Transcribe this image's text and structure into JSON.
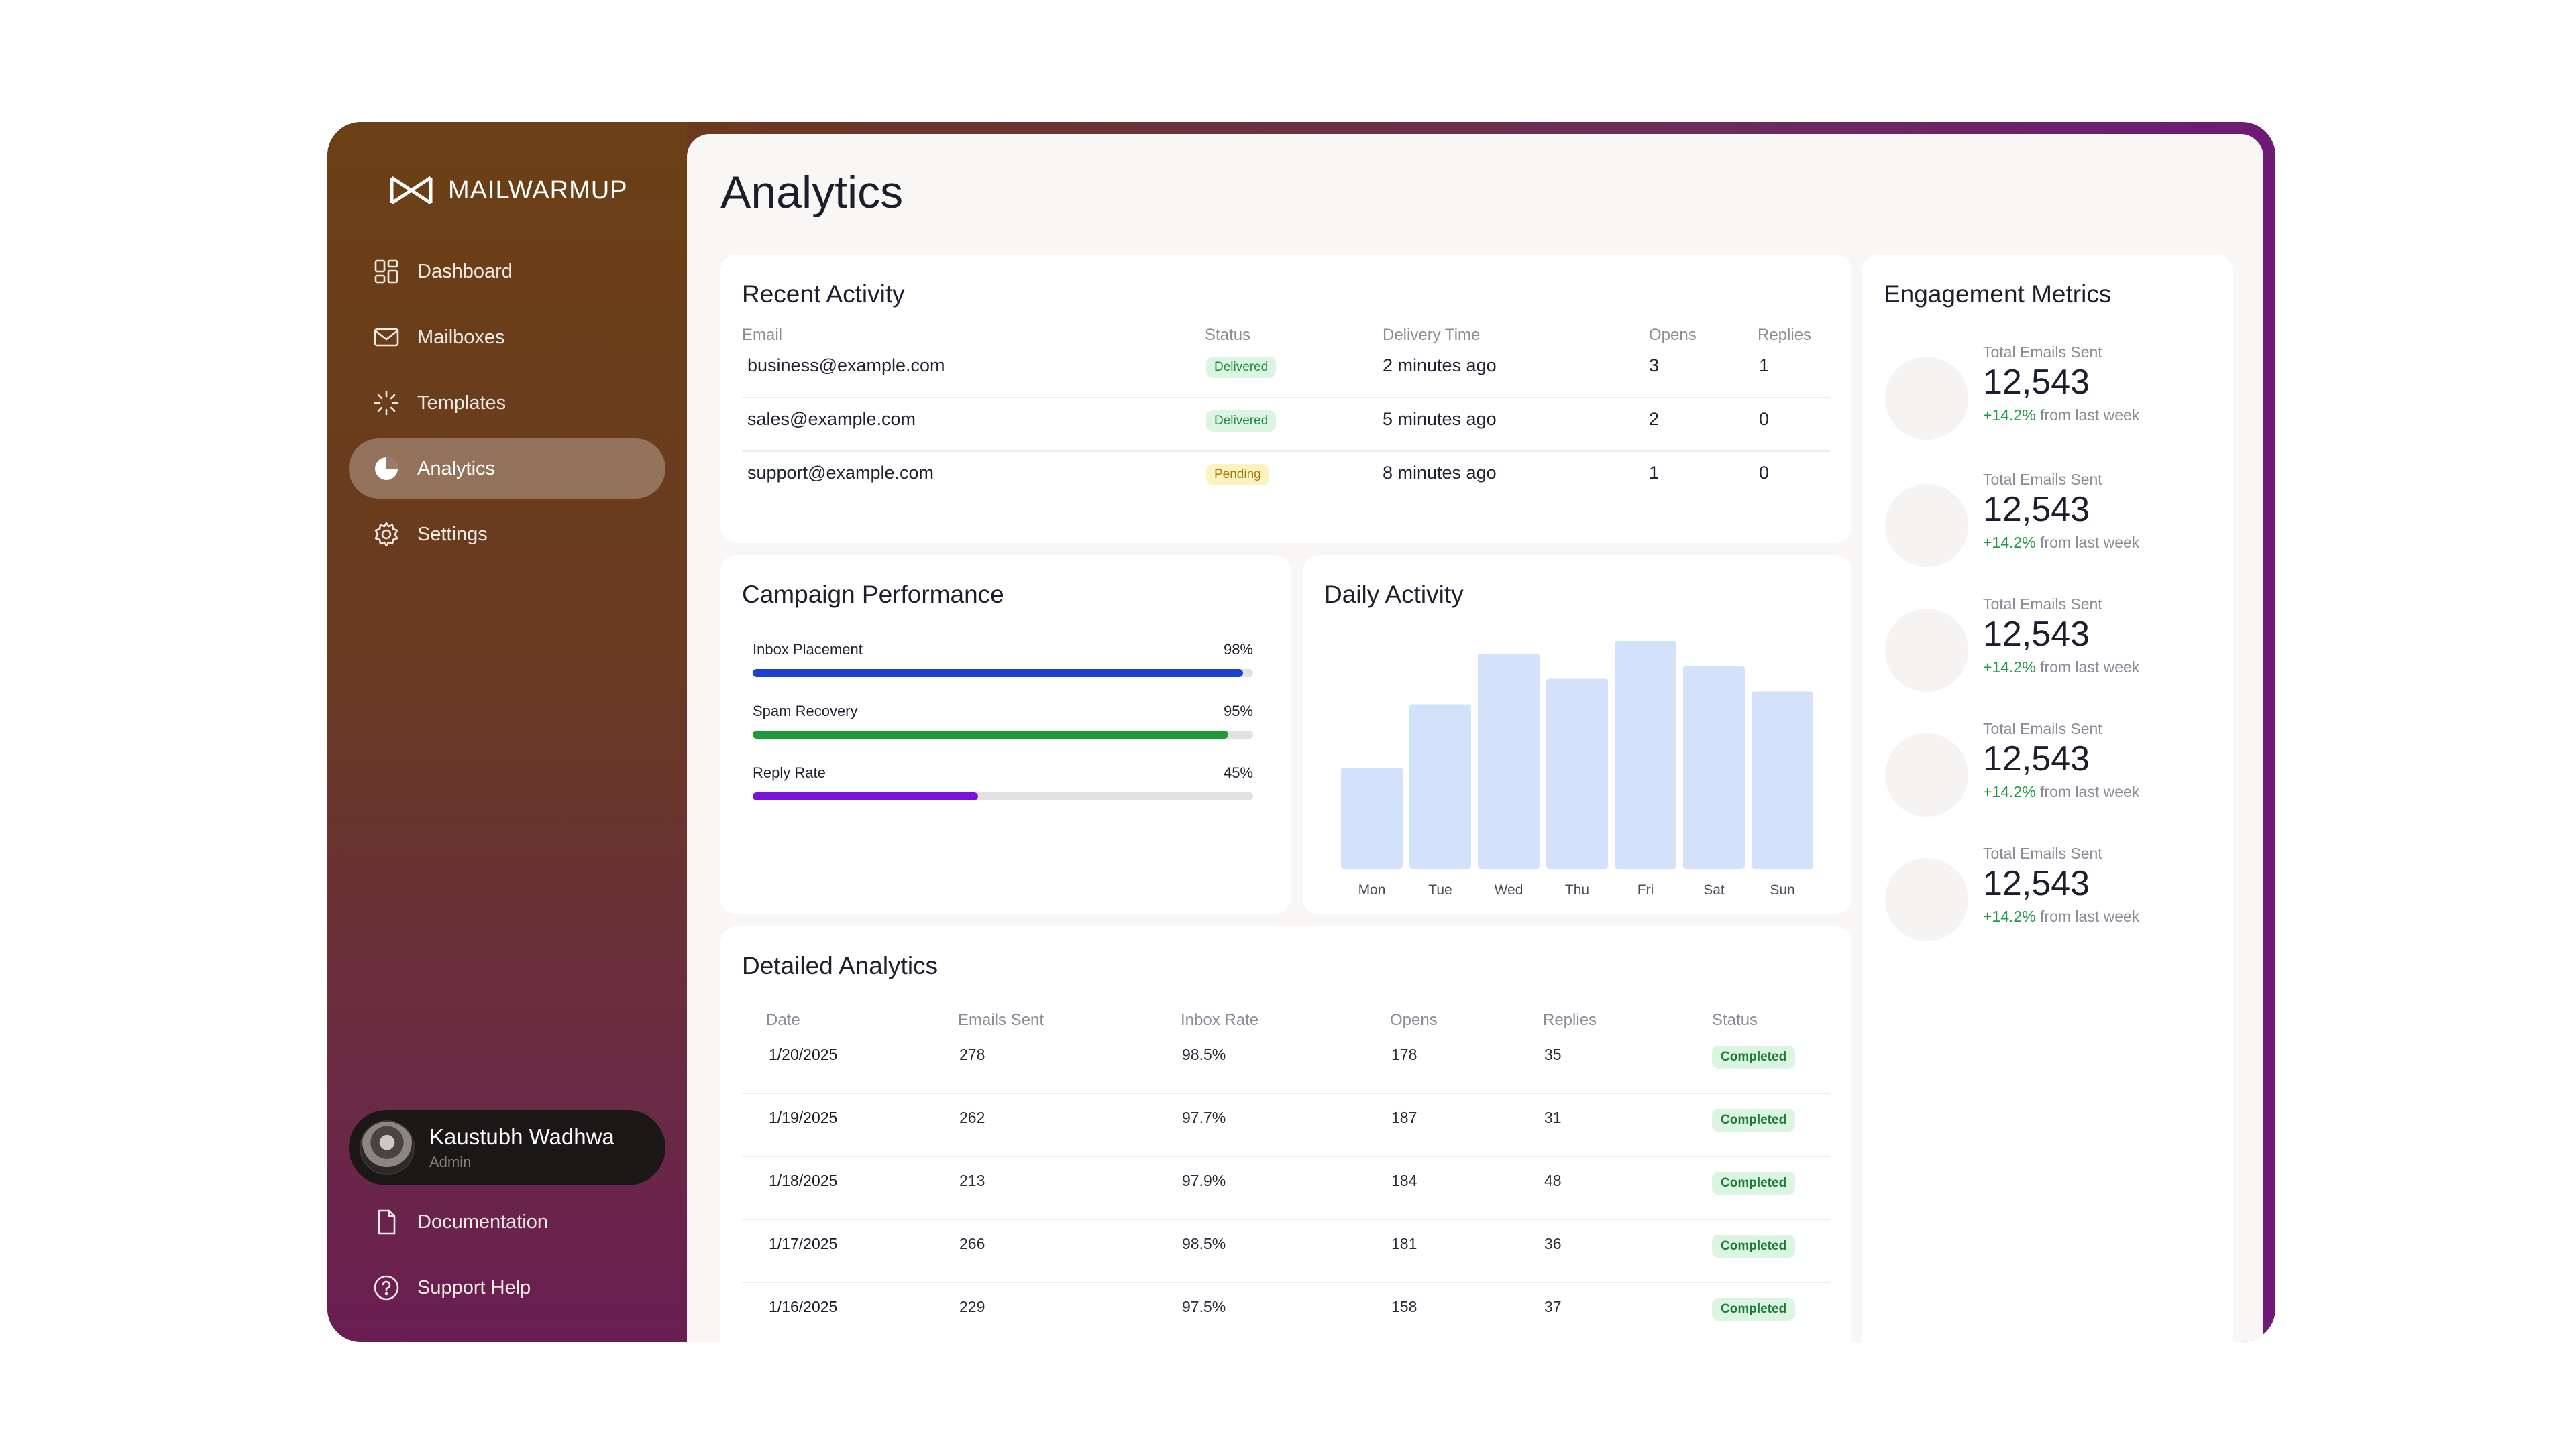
{
  "brand": {
    "name": "MAILWARMUP"
  },
  "nav": [
    {
      "label": "Dashboard",
      "icon": "dashboard-icon",
      "active": false
    },
    {
      "label": "Mailboxes",
      "icon": "mail-icon",
      "active": false
    },
    {
      "label": "Templates",
      "icon": "loader-icon",
      "active": false
    },
    {
      "label": "Analytics",
      "icon": "pie-chart-icon",
      "active": true
    },
    {
      "label": "Settings",
      "icon": "gear-icon",
      "active": false
    }
  ],
  "user": {
    "name": "Kaustubh Wadhwa",
    "role": "Admin"
  },
  "bottom_links": [
    {
      "label": "Documentation",
      "icon": "document-icon"
    },
    {
      "label": "Support Help",
      "icon": "help-icon"
    }
  ],
  "page": {
    "title": "Analytics"
  },
  "recent_activity": {
    "title": "Recent Activity",
    "columns": [
      "Email",
      "Status",
      "Delivery Time",
      "Opens",
      "Replies"
    ],
    "rows": [
      {
        "email": "business@example.com",
        "status": "Delivered",
        "time": "2 minutes ago",
        "opens": "3",
        "replies": "1"
      },
      {
        "email": "sales@example.com",
        "status": "Delivered",
        "time": "5 minutes ago",
        "opens": "2",
        "replies": "0"
      },
      {
        "email": "support@example.com",
        "status": "Pending",
        "time": "8 minutes ago",
        "opens": "1",
        "replies": "0"
      }
    ]
  },
  "campaign": {
    "title": "Campaign Performance",
    "metrics": [
      {
        "label": "Inbox Placement",
        "value": "98%",
        "fill": 0.98,
        "color": "#1b3fd1"
      },
      {
        "label": "Spam Recovery",
        "value": "95%",
        "fill": 0.95,
        "color": "#1e9a3b"
      },
      {
        "label": "Reply Rate",
        "value": "45%",
        "fill": 0.45,
        "color": "#7a12d8"
      }
    ]
  },
  "chart_data": {
    "type": "bar",
    "title": "Daily Activity",
    "categories": [
      "Mon",
      "Tue",
      "Wed",
      "Thu",
      "Fri",
      "Sat",
      "Sun"
    ],
    "values": [
      40,
      65,
      85,
      75,
      90,
      80,
      70
    ],
    "ylim": [
      0,
      90
    ],
    "color": "#d3e1fb",
    "grid": false,
    "xlabel": "",
    "ylabel": ""
  },
  "engagement": {
    "title": "Engagement Metrics",
    "items": [
      {
        "label": "Total Emails Sent",
        "value": "12,543",
        "change": "+14.2%",
        "suffix": "from last week"
      },
      {
        "label": "Total Emails Sent",
        "value": "12,543",
        "change": "+14.2%",
        "suffix": "from last week"
      },
      {
        "label": "Total Emails Sent",
        "value": "12,543",
        "change": "+14.2%",
        "suffix": "from last week"
      },
      {
        "label": "Total Emails Sent",
        "value": "12,543",
        "change": "+14.2%",
        "suffix": "from last week"
      },
      {
        "label": "Total Emails Sent",
        "value": "12,543",
        "change": "+14.2%",
        "suffix": "from last week"
      }
    ]
  },
  "detailed": {
    "title": "Detailed Analytics",
    "columns": [
      "Date",
      "Emails Sent",
      "Inbox Rate",
      "Opens",
      "Replies",
      "Status"
    ],
    "rows": [
      {
        "date": "1/20/2025",
        "sent": "278",
        "inbox": "98.5%",
        "opens": "178",
        "replies": "35",
        "status": "Completed"
      },
      {
        "date": "1/19/2025",
        "sent": "262",
        "inbox": "97.7%",
        "opens": "187",
        "replies": "31",
        "status": "Completed"
      },
      {
        "date": "1/18/2025",
        "sent": "213",
        "inbox": "97.9%",
        "opens": "184",
        "replies": "48",
        "status": "Completed"
      },
      {
        "date": "1/17/2025",
        "sent": "266",
        "inbox": "98.5%",
        "opens": "181",
        "replies": "36",
        "status": "Completed"
      },
      {
        "date": "1/16/2025",
        "sent": "229",
        "inbox": "97.5%",
        "opens": "158",
        "replies": "37",
        "status": "Completed"
      }
    ]
  }
}
